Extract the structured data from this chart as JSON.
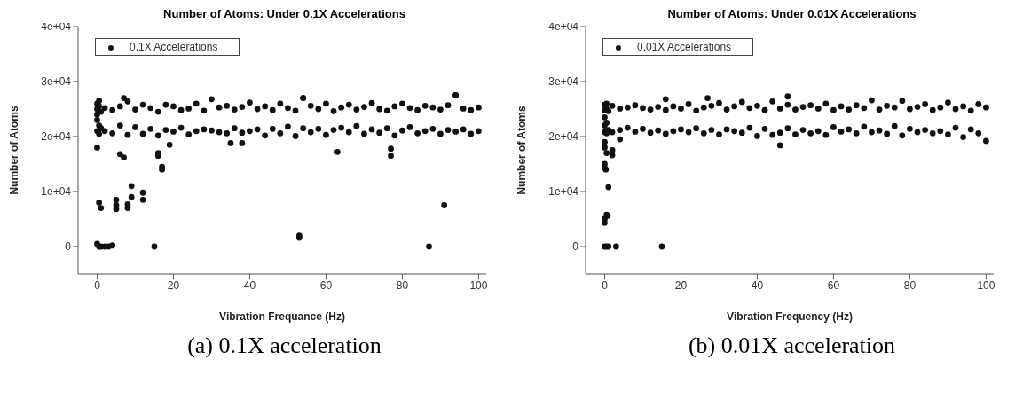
{
  "chart_data": [
    {
      "type": "scatter",
      "title": "Number of Atoms: Under 0.1X Accelerations",
      "xlabel": "Vibration Frequance (Hz)",
      "ylabel": "Number of Atoms",
      "annotations": [
        "(a) 0.1X acceleration"
      ],
      "legend": "top left",
      "marker": "circle",
      "grid": false,
      "xlim": [
        -5,
        102
      ],
      "xticks": [
        0,
        20,
        40,
        60,
        80,
        100
      ],
      "ylim": [
        -5000,
        40000
      ],
      "yticks": [
        {
          "value": 0,
          "label": "0"
        },
        {
          "value": 10000,
          "label": "1e+04"
        },
        {
          "value": 20000,
          "label": "2e+04"
        },
        {
          "value": 30000,
          "label": "3e+04"
        },
        {
          "value": 40000,
          "label": "4e+04"
        }
      ],
      "series": [
        {
          "name": "0.1X Accelerations",
          "color": "#111111",
          "x": [
            0,
            0,
            0,
            0,
            0,
            0.5,
            0.5,
            0.5,
            0.5,
            1,
            1,
            2,
            2,
            4,
            4,
            6,
            6,
            8,
            8,
            10,
            10,
            12,
            12,
            14,
            14,
            16,
            16,
            18,
            18,
            20,
            20,
            22,
            22,
            24,
            24,
            26,
            26,
            28,
            28,
            30,
            30,
            32,
            32,
            34,
            34,
            36,
            36,
            38,
            38,
            40,
            40,
            42,
            42,
            44,
            44,
            46,
            46,
            48,
            48,
            50,
            50,
            52,
            52,
            54,
            54,
            56,
            56,
            58,
            58,
            60,
            60,
            62,
            62,
            64,
            64,
            66,
            66,
            68,
            68,
            70,
            70,
            72,
            72,
            74,
            74,
            76,
            76,
            78,
            78,
            80,
            80,
            82,
            82,
            84,
            84,
            86,
            86,
            88,
            88,
            90,
            90,
            92,
            92,
            94,
            94,
            96,
            96,
            98,
            98,
            100,
            100,
            0,
            0.5,
            1,
            0,
            0.5,
            1,
            2,
            3,
            4,
            6,
            7,
            5,
            5,
            5,
            8,
            8,
            9,
            9,
            12,
            12,
            15,
            16,
            16,
            17,
            17,
            53,
            53,
            63,
            77,
            77,
            87,
            91,
            19,
            35,
            38,
            7,
            54,
            94
          ],
          "values": [
            26000,
            25000,
            24000,
            23000,
            21000,
            26500,
            25500,
            22000,
            20500,
            24500,
            21500,
            25200,
            21000,
            24800,
            20600,
            25500,
            22000,
            26400,
            20300,
            24900,
            21700,
            25800,
            20500,
            25200,
            21400,
            24500,
            20200,
            25800,
            21200,
            25500,
            20900,
            24800,
            21600,
            25100,
            20400,
            26000,
            21000,
            24700,
            21300,
            26800,
            21100,
            25300,
            20800,
            25600,
            20600,
            24900,
            21500,
            25400,
            20700,
            26200,
            21000,
            25000,
            21300,
            25500,
            20200,
            24800,
            21400,
            26000,
            20600,
            25200,
            21800,
            24700,
            20100,
            27000,
            21500,
            25600,
            20800,
            25000,
            21400,
            26000,
            20300,
            24600,
            21200,
            25300,
            21600,
            25800,
            20800,
            24900,
            21900,
            25400,
            20500,
            26100,
            21300,
            25000,
            20700,
            24700,
            21500,
            25500,
            20200,
            26000,
            21100,
            25200,
            21700,
            24800,
            20600,
            25600,
            21000,
            25300,
            21400,
            24900,
            20500,
            25700,
            21200,
            27500,
            20900,
            25100,
            21300,
            24800,
            20500,
            25300,
            21000,
            18000,
            8000,
            7000,
            500,
            0,
            0,
            0,
            0,
            200,
            16800,
            16200,
            8500,
            7500,
            6800,
            7700,
            7000,
            11000,
            9000,
            9800,
            8500,
            0,
            17000,
            16500,
            14500,
            14000,
            2000,
            1600,
            17200,
            17800,
            16500,
            0,
            7500,
            18500,
            18800,
            18800,
            27000,
            27000,
            27500
          ]
        }
      ]
    },
    {
      "type": "scatter",
      "title": "Number of Atoms: Under 0.01X Accelerations",
      "xlabel": "Vibration Frequency (Hz)",
      "ylabel": "Number of Atoms",
      "annotations": [
        "(b) 0.01X acceleration"
      ],
      "legend": "top left",
      "marker": "circle",
      "grid": false,
      "xlim": [
        -5,
        102
      ],
      "xticks": [
        0,
        20,
        40,
        60,
        80,
        100
      ],
      "ylim": [
        -5000,
        40000
      ],
      "yticks": [
        {
          "value": 0,
          "label": "0"
        },
        {
          "value": 10000,
          "label": "1e+04"
        },
        {
          "value": 20000,
          "label": "2e+04"
        },
        {
          "value": 30000,
          "label": "3e+04"
        },
        {
          "value": 40000,
          "label": "4e+04"
        }
      ],
      "series": [
        {
          "name": "0.01X Accelerations",
          "color": "#111111",
          "x": [
            0,
            0,
            0,
            0,
            0,
            0.5,
            0.5,
            0.5,
            0.5,
            1,
            1,
            2,
            2,
            4,
            4,
            6,
            6,
            8,
            8,
            10,
            10,
            12,
            12,
            14,
            14,
            16,
            16,
            18,
            18,
            20,
            20,
            22,
            22,
            24,
            24,
            26,
            26,
            28,
            28,
            30,
            30,
            32,
            32,
            34,
            34,
            36,
            36,
            38,
            38,
            40,
            40,
            42,
            42,
            44,
            44,
            46,
            46,
            48,
            48,
            50,
            50,
            52,
            52,
            54,
            54,
            56,
            56,
            58,
            58,
            60,
            60,
            62,
            62,
            64,
            64,
            66,
            66,
            68,
            68,
            70,
            70,
            72,
            72,
            74,
            74,
            76,
            76,
            78,
            78,
            80,
            80,
            82,
            82,
            84,
            84,
            86,
            86,
            88,
            88,
            90,
            90,
            92,
            92,
            94,
            94,
            96,
            96,
            98,
            98,
            100,
            100,
            0,
            0,
            0.5,
            0,
            0,
            0.3,
            1,
            0,
            0.5,
            0.8,
            0,
            0,
            0.5,
            1,
            3,
            15,
            2,
            2,
            4,
            46,
            48,
            27,
            16
          ],
          "values": [
            25800,
            24800,
            23500,
            22000,
            20800,
            26000,
            25000,
            22500,
            20600,
            24600,
            21200,
            25600,
            20800,
            25100,
            21200,
            25300,
            21600,
            25700,
            20900,
            25200,
            21400,
            24900,
            20700,
            25400,
            21100,
            24800,
            20500,
            25500,
            21000,
            25100,
            21300,
            25900,
            20800,
            24700,
            21500,
            25300,
            20600,
            25600,
            21200,
            26100,
            20400,
            24900,
            21300,
            25500,
            21000,
            26300,
            20700,
            25200,
            21600,
            25600,
            20100,
            24800,
            21400,
            26400,
            20300,
            25100,
            20700,
            25800,
            21500,
            24900,
            20400,
            25400,
            21200,
            25700,
            20600,
            25100,
            21000,
            26000,
            20300,
            24800,
            21700,
            25500,
            20900,
            24900,
            21300,
            25700,
            20600,
            25200,
            21800,
            26600,
            20800,
            24900,
            21100,
            25600,
            20500,
            25300,
            21900,
            26500,
            20200,
            25000,
            21400,
            25400,
            20800,
            25900,
            21200,
            24800,
            20600,
            25300,
            21000,
            26200,
            20400,
            25000,
            21600,
            25500,
            19900,
            24700,
            21300,
            25900,
            20600,
            25300,
            19200,
            19000,
            18000,
            17000,
            15000,
            14300,
            14000,
            10800,
            5000,
            5800,
            5600,
            4300,
            0,
            0,
            0,
            0,
            0,
            17500,
            16600,
            19500,
            18400,
            27300,
            27000,
            26800
          ]
        }
      ]
    }
  ]
}
